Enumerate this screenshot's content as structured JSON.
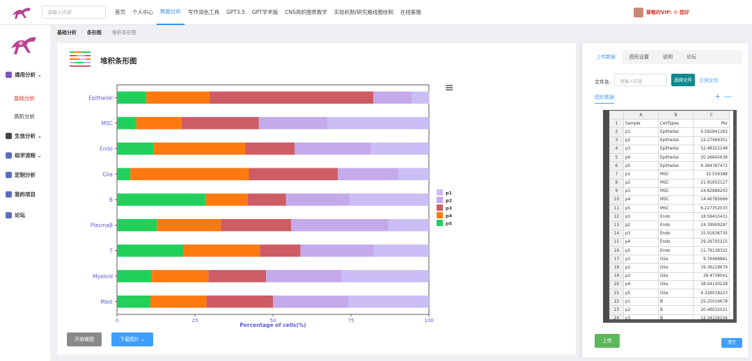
{
  "header": {
    "search_placeholder": "请输入内容",
    "nav": [
      "首页",
      "个人中心",
      "数据分析",
      "写作润色工具",
      "GPT3.5",
      "GPT学术版",
      "CNS高阶图表教学",
      "实验机制/研究路线图绘制",
      "在线客服"
    ],
    "active_nav": 2,
    "vip_text": "尊敬的VIP: ✉ 您好"
  },
  "sidebar": {
    "items": [
      {
        "label": "通用分析 ⌄",
        "type": "group"
      },
      {
        "label": "基础分析",
        "type": "sub-active"
      },
      {
        "label": "高阶分析",
        "type": "sub"
      },
      {
        "label": "生信分析 ⌄",
        "type": "group"
      },
      {
        "label": "组学流程 ⌄",
        "type": "group"
      },
      {
        "label": "定制分析",
        "type": "group"
      },
      {
        "label": "我的项目",
        "type": "group"
      },
      {
        "label": "论坛",
        "type": "group"
      }
    ]
  },
  "breadcrumb": {
    "a": "基础分析",
    "b": "条形图",
    "c": "堆积条形图"
  },
  "main": {
    "title": "堆积条形图",
    "start_button": "开始做图",
    "download_button": "下载图片 ⌄"
  },
  "colors": {
    "p1": "#cbbdf5",
    "p2": "#c4aaeb",
    "p3": "#cd5c64",
    "p4": "#fe7a10",
    "p5": "#21d05a"
  },
  "chart_data": {
    "type": "bar",
    "orientation": "horizontal",
    "stacked": true,
    "categories": [
      "Epithelial",
      "MSC",
      "Endo",
      "Glia",
      "B",
      "PlasmaB",
      "T",
      "Myeloid",
      "Mast"
    ],
    "series": [
      {
        "name": "p5",
        "values": [
          9.4,
          6.2,
          11.8,
          4.3,
          28.4,
          12.8,
          21.2,
          11.2,
          10.7
        ]
      },
      {
        "name": "p4",
        "values": [
          20.3,
          14.5,
          29.3,
          38.0,
          13.5,
          20.5,
          24.6,
          18.1,
          18.0
        ]
      },
      {
        "name": "p3",
        "values": [
          52.5,
          24.8,
          15.9,
          28.5,
          12.3,
          22.5,
          13.0,
          18.5,
          21.3
        ]
      },
      {
        "name": "p2",
        "values": [
          12.3,
          21.9,
          24.4,
          19.4,
          20.5,
          31.3,
          23.5,
          24.2,
          24.3
        ]
      },
      {
        "name": "p1",
        "values": [
          5.6,
          32.6,
          18.6,
          9.8,
          25.3,
          12.9,
          17.7,
          28.0,
          25.7
        ]
      }
    ],
    "legend": [
      "p1",
      "p2",
      "p3",
      "p4",
      "p5"
    ],
    "legend_position": "right",
    "xlabel": "Percentage of cells(%)",
    "ylabel": "",
    "xlim": [
      0,
      100
    ],
    "xticks": [
      0,
      25,
      50,
      75,
      100
    ]
  },
  "right_panel": {
    "tabs": [
      "上传数据",
      "图形设置",
      "说明",
      "论坛"
    ],
    "active_tab": 0,
    "file_label": "文件名:",
    "file_placeholder": "请输入内容",
    "choose_button": "选择文件",
    "example_link": "示例文件",
    "data_tab": "图形数据",
    "plus": "+",
    "minus": "—",
    "upload_button": "上传",
    "clear_button": "清空",
    "sheet": {
      "columns": [
        "A",
        "B",
        "C"
      ],
      "rows": [
        [
          "1",
          "Sample",
          "CellTypes",
          "Per"
        ],
        [
          "2",
          "p1",
          "Epithelial",
          "5.592841163"
        ],
        [
          "3",
          "p2",
          "Epithelial",
          "12.27069351"
        ],
        [
          "4",
          "p3",
          "Epithelial",
          "52.48322148"
        ],
        [
          "5",
          "p4",
          "Epithelial",
          "20.26845638"
        ],
        [
          "6",
          "p5",
          "Epithelial",
          "9.384787472"
        ],
        [
          "7",
          "p1",
          "MSC",
          "32.559388"
        ],
        [
          "8",
          "p2",
          "MSC",
          "21.91652127"
        ],
        [
          "9",
          "p3",
          "MSC",
          "24.82888203"
        ],
        [
          "10",
          "p4",
          "MSC",
          "14.46785666"
        ],
        [
          "11",
          "p5",
          "MSC",
          "6.227352033"
        ],
        [
          "12",
          "p1",
          "Endo",
          "18.59410431"
        ],
        [
          "13",
          "p2",
          "Endo",
          "24.39909297"
        ],
        [
          "14",
          "p3",
          "Endo",
          "15.91836735"
        ],
        [
          "15",
          "p4",
          "Endo",
          "29.29705215"
        ],
        [
          "16",
          "p5",
          "Endo",
          "11.79138322"
        ],
        [
          "17",
          "p1",
          "Glia",
          "9.79498861"
        ],
        [
          "18",
          "p2",
          "Glia",
          "19.36218679"
        ],
        [
          "19",
          "p3",
          "Glia",
          "28.4738041"
        ],
        [
          "20",
          "p4",
          "Glia",
          "38.04100228"
        ],
        [
          "21",
          "p5",
          "Glia",
          "4.328018223"
        ],
        [
          "22",
          "p1",
          "B",
          "25.25016678"
        ],
        [
          "23",
          "p2",
          "B",
          "20.48032021"
        ],
        [
          "24",
          "p3",
          "B",
          "12.34156104"
        ]
      ]
    }
  }
}
